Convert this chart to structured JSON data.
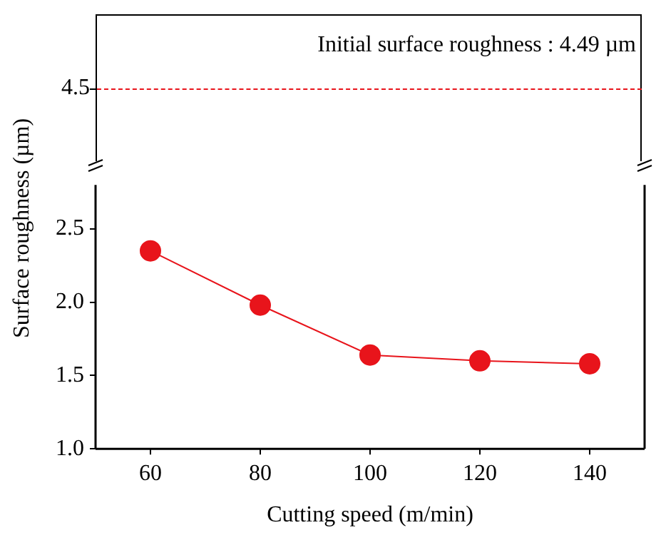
{
  "chart_data": [
    {
      "type": "other",
      "annotations": [
        "4.5",
        "Initial surface roughness : 4.49 µm"
      ]
    },
    {
      "type": "line",
      "ylabel": "Surface roughness (µm)",
      "xlabel": "Cutting speed (m/min)",
      "x": [
        60,
        80,
        100,
        120,
        140
      ],
      "xlim": [
        50,
        150
      ],
      "xticks": [
        60,
        80,
        100,
        120,
        140
      ],
      "ylim": [
        1,
        2.8
      ],
      "yticks": [
        {
          "value": 1,
          "label": "1.0"
        },
        1.5,
        {
          "value": 2,
          "label": "2.0"
        },
        2.5
      ],
      "marker": "circle",
      "line_style": "solid",
      "series": [
        {
          "color": "#e8141b",
          "values": [
            2.35,
            1.98,
            1.64,
            1.6,
            1.58
          ]
        }
      ]
    }
  ]
}
